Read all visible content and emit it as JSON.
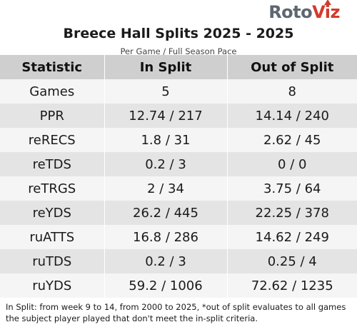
{
  "logo": {
    "part1": "Roto",
    "part2": "Viz"
  },
  "title": "Breece Hall Splits 2025 - 2025",
  "subtitle": "Per Game / Full Season Pace",
  "columns": [
    "Statistic",
    "In Split",
    "Out of Split"
  ],
  "rows": [
    {
      "stat": "Games",
      "in": "5",
      "out": "8"
    },
    {
      "stat": "PPR",
      "in": "12.74 / 217",
      "out": "14.14 / 240"
    },
    {
      "stat": "reRECS",
      "in": "1.8 / 31",
      "out": "2.62 / 45"
    },
    {
      "stat": "reTDS",
      "in": "0.2 / 3",
      "out": "0 / 0"
    },
    {
      "stat": "reTRGS",
      "in": "2 / 34",
      "out": "3.75 / 64"
    },
    {
      "stat": "reYDS",
      "in": "26.2 / 445",
      "out": "22.25 / 378"
    },
    {
      "stat": "ruATTS",
      "in": "16.8 / 286",
      "out": "14.62 / 249"
    },
    {
      "stat": "ruTDS",
      "in": "0.2 / 3",
      "out": "0.25 / 4"
    },
    {
      "stat": "ruYDS",
      "in": "59.2 / 1006",
      "out": "72.62 / 1235"
    }
  ],
  "footnote": "In Split: from week 9 to 14, from 2000 to 2025,  *out of split evaluates to all games the subject player played that don't meet the in-split criteria.",
  "colors": {
    "header_bg": "#cfcfcf",
    "row_light": "#f5f5f5",
    "row_dark": "#e4e4e4",
    "logo_gray": "#5c6770",
    "logo_red": "#d33a2c"
  }
}
